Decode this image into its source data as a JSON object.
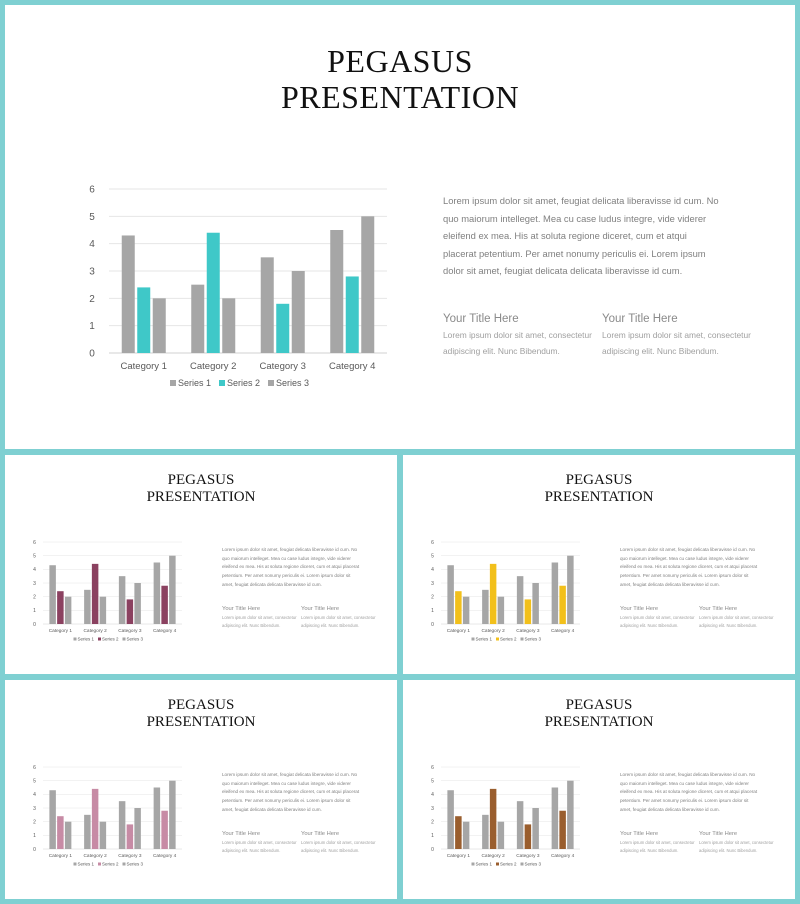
{
  "slides": [
    {
      "title_line1": "PEGASUS",
      "title_line2": "PRESENTATION",
      "accent": "#3fc8c8"
    },
    {
      "title_line1": "PEGASUS",
      "title_line2": "PRESENTATION",
      "accent": "#8b4160"
    },
    {
      "title_line1": "PEGASUS",
      "title_line2": "PRESENTATION",
      "accent": "#f2c01b"
    },
    {
      "title_line1": "PEGASUS",
      "title_line2": "PRESENTATION",
      "accent": "#c78ba5"
    },
    {
      "title_line1": "PEGASUS",
      "title_line2": "PRESENTATION",
      "accent": "#9a5e2e"
    }
  ],
  "body_text": "Lorem ipsum dolor sit amet, feugiat delicata liberavisse id cum. No quo maiorum intelleget. Mea cu case ludus integre, vide viderer eleifend ex mea. His at soluta regione diceret, cum et atqui placerat petentium. Per amet nonumy periculis ei. Lorem ipsum dolor sit amet, feugiat delicata delicata liberavisse id cum.",
  "columns": [
    {
      "title": "Your Title Here",
      "text": "Lorem ipsum dolor sit amet, consectetur adipiscing elit. Nunc Bibendum."
    },
    {
      "title": "Your Title Here",
      "text": "Lorem ipsum dolor sit amet, consectetur adipiscing elit. Nunc Bibendum."
    }
  ],
  "chart_data": {
    "type": "bar",
    "categories": [
      "Category 1",
      "Category 2",
      "Category 3",
      "Category 4"
    ],
    "series": [
      {
        "name": "Series 1",
        "values": [
          4.3,
          2.5,
          3.5,
          4.5
        ]
      },
      {
        "name": "Series 2",
        "values": [
          2.4,
          4.4,
          1.8,
          2.8
        ]
      },
      {
        "name": "Series 3",
        "values": [
          2,
          2,
          3,
          5
        ]
      }
    ],
    "ylim": [
      0,
      6
    ],
    "yticks": [
      0,
      1,
      2,
      3,
      4,
      5,
      6
    ],
    "grid": true,
    "legend": "bottom",
    "gray": "#a6a6a6"
  }
}
